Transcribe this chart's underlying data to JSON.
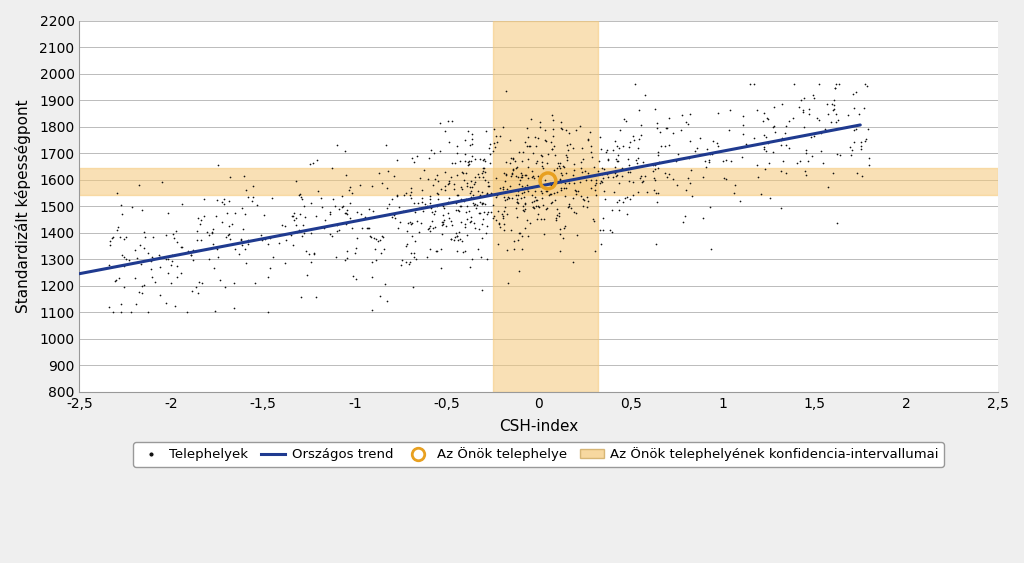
{
  "title": "",
  "xlabel": "CSH-index",
  "ylabel": "Standardizált képességpont",
  "xlim": [
    -2.5,
    2.5
  ],
  "ylim": [
    800,
    2200
  ],
  "yticks": [
    800,
    900,
    1000,
    1100,
    1200,
    1300,
    1400,
    1500,
    1600,
    1700,
    1800,
    1900,
    2000,
    2100,
    2200
  ],
  "xticks": [
    -2.5,
    -2.0,
    -1.5,
    -1.0,
    -0.5,
    0.0,
    0.5,
    1.0,
    1.5,
    2.0,
    2.5
  ],
  "xtick_labels": [
    "-2,5",
    "-2",
    "-1,5",
    "-1",
    "-0,5",
    "0",
    "0,5",
    "1",
    "1,5",
    "2",
    "2,5"
  ],
  "ytick_labels": [
    "800",
    "900",
    "1000",
    "1100",
    "1200",
    "1300",
    "1400",
    "1500",
    "1600",
    "1700",
    "1800",
    "1900",
    "2000",
    "2100",
    "2200"
  ],
  "trend_slope": 132.0,
  "trend_intercept": 1575.0,
  "trend_x_start": -2.5,
  "trend_x_end": 1.75,
  "scatter_seed": 42,
  "n_points": 1100,
  "scatter_color": "#111111",
  "scatter_size": 6,
  "trend_color": "#1F3A8F",
  "trend_linewidth": 2.2,
  "highlight_x": 0.05,
  "highlight_y": 1595.0,
  "highlight_color": "#E8A020",
  "highlight_size": 130,
  "highlight_linewidth": 2.5,
  "conf_x_min": -0.25,
  "conf_x_max": 0.32,
  "conf_h_y_min": 1540,
  "conf_h_y_max": 1645,
  "conf_color": "#F5C878",
  "conf_alpha": 0.55,
  "background_color": "#EFEFEF",
  "plot_bg_color": "#FFFFFF",
  "legend_labels": [
    "Telephelyek",
    "Országos trend",
    "Az Önök telephelye",
    "Az Önök telephelyének konfidencia-intervallumai"
  ],
  "grid_color": "#BBBBBB",
  "grid_linewidth": 0.7,
  "xlabel_fontsize": 11,
  "ylabel_fontsize": 11,
  "tick_fontsize": 10
}
